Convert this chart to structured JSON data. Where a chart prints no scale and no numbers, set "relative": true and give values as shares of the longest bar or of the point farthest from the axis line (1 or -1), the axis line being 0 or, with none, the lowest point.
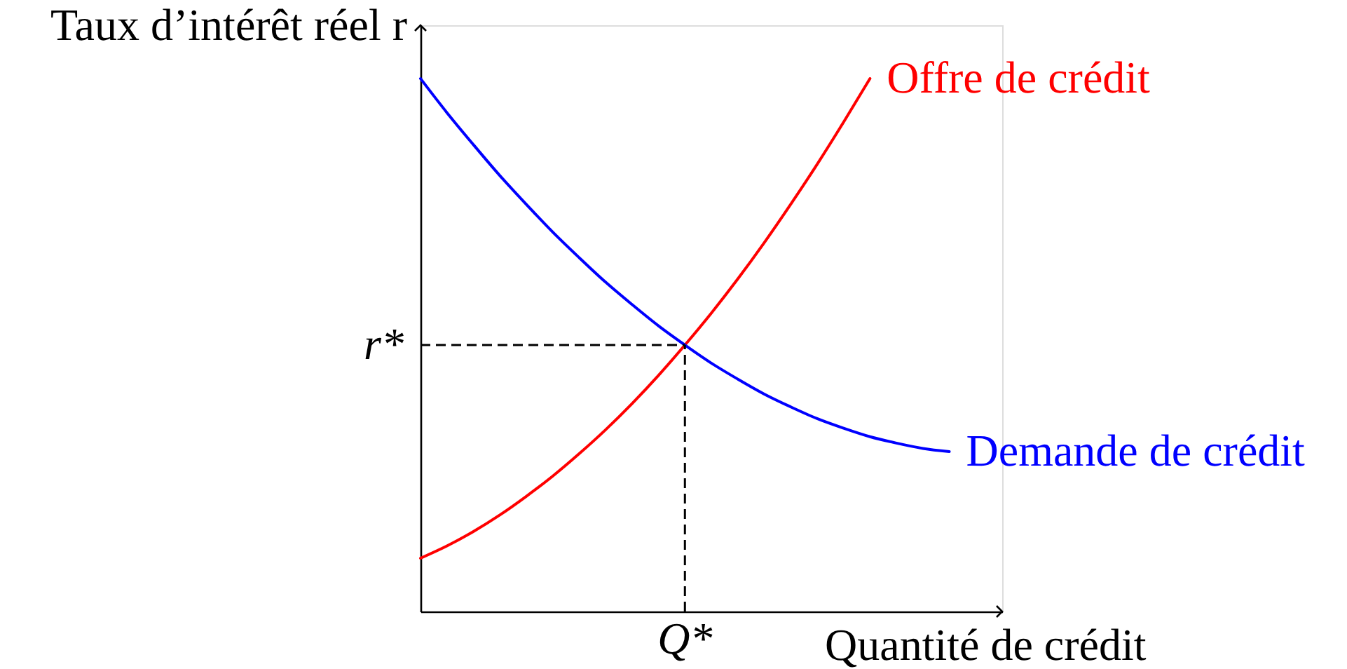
{
  "chart_data": {
    "type": "line",
    "xlabel": "Quantité de crédit",
    "ylabel": "Taux d’intérêt réel r",
    "relative": true,
    "legend": false,
    "categories": [
      null,
      null,
      null,
      null,
      null,
      null,
      null,
      null,
      null,
      null,
      null,
      null,
      null,
      null,
      null,
      null,
      null,
      null,
      null,
      null,
      null,
      null,
      null
    ],
    "series": [
      {
        "name": "Offre de crédit",
        "color": "#ff0000",
        "values": [
          0.1,
          0.123,
          0.15,
          0.181,
          0.216,
          0.254,
          0.296,
          0.341,
          0.39,
          0.443,
          0.5,
          0.56,
          0.624,
          0.692,
          0.764,
          0.839,
          0.918,
          1.0,
          null,
          null,
          null,
          null,
          null
        ]
      },
      {
        "name": "Demande de crédit",
        "color": "#0000ff",
        "values": [
          1.0,
          0.936,
          0.876,
          0.818,
          0.764,
          0.712,
          0.664,
          0.618,
          0.576,
          0.536,
          0.5,
          0.466,
          0.436,
          0.408,
          0.384,
          0.362,
          0.344,
          0.328,
          0.316,
          0.306,
          0.3,
          null,
          null
        ]
      }
    ],
    "ref_lines": [
      {
        "axis": "y",
        "value": 0.5,
        "label": "r*",
        "color": "#000000",
        "line_style": "dashed"
      }
    ],
    "annotations": [
      "Q*"
    ]
  }
}
